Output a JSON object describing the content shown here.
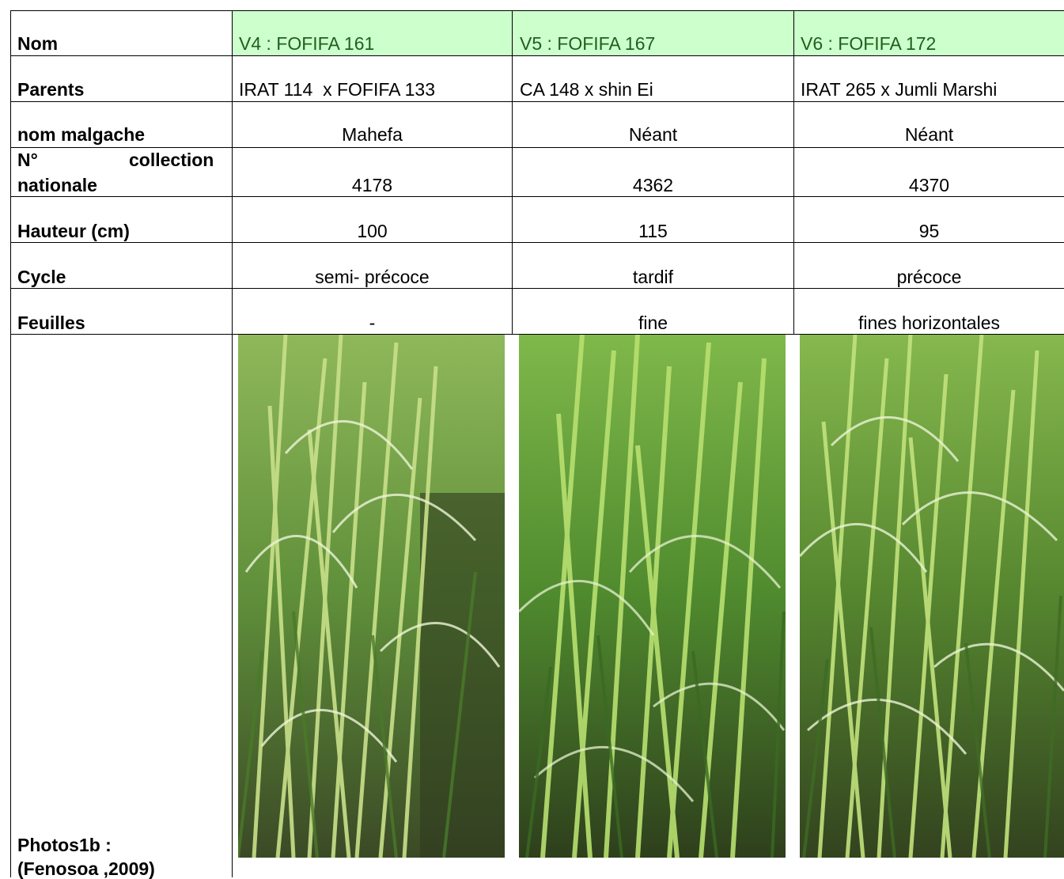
{
  "rows": {
    "nom": {
      "label": "Nom",
      "v4": "V4 : FOFIFA 161",
      "v5": "V5 : FOFIFA 167",
      "v6": "V6 : FOFIFA 172"
    },
    "parents": {
      "label": "Parents",
      "v4": "IRAT 114  x FOFIFA 133",
      "v5": "CA 148 x shin Ei",
      "v6": "IRAT 265 x Jumli Marshi"
    },
    "malgache": {
      "label": "nom malgache",
      "v4": "Mahefa",
      "v5": "Néant",
      "v6": "Néant"
    },
    "collection": {
      "label_line1_a": "N°",
      "label_line1_b": "collection",
      "label_line2": "nationale",
      "v4": "4178",
      "v5": "4362",
      "v6": "4370"
    },
    "hauteur": {
      "label": "Hauteur (cm)",
      "v4": "100",
      "v5": "115",
      "v6": "95"
    },
    "cycle": {
      "label": "Cycle",
      "v4": "semi- précoce",
      "v5": "tardif",
      "v6": "précoce"
    },
    "feuilles": {
      "label": "Feuilles",
      "v4": "-",
      "v5": "fine",
      "v6": "fines horizontales"
    },
    "photos": {
      "label_line1": "Photos1b :",
      "label_line2": "(Fenosoa ,2009)"
    }
  },
  "colors": {
    "header_bg": "#ccffcc",
    "header_text": "#1f5f1f"
  }
}
